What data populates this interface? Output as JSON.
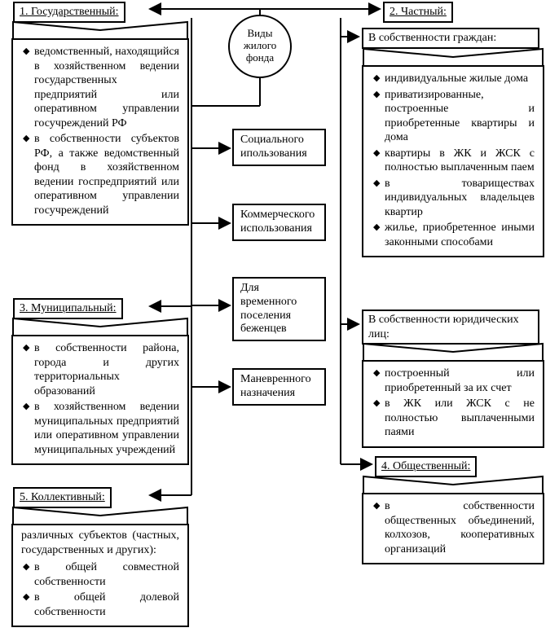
{
  "diagram": {
    "type": "flowchart",
    "background_color": "#ffffff",
    "border_color": "#000000",
    "stroke_width": 2,
    "font_family": "Times New Roman",
    "font_size": 14,
    "center": {
      "label": "Виды жилого\nфонда"
    },
    "categories": {
      "cat1": {
        "title": "1. Государственный:",
        "underline": true,
        "items": [
          "ведомственный, находящийся в хозяйственном ведении государственных предприятий или оперативном управлении госучреждений РФ",
          "в собственности субъектов РФ, а также ведомственный фонд в хозяйственном ведении госпредприятий или оперативном управлении госучреждений"
        ]
      },
      "cat2": {
        "title": "2. Частный:",
        "underline": true,
        "sub_a_title": "В собственности граждан:",
        "sub_a_items": [
          "индивидуальные жилые дома",
          "приватизированные, построенные и приобретенные квартиры и дома",
          "квартиры в ЖК и ЖСК с полностью выплаченным паем",
          "в товариществах индивидуальных владельцев квартир",
          "жилье, приобретенное иными законными способами"
        ],
        "sub_b_title": "В собственности юридических лиц:",
        "sub_b_items": [
          "построенный или приобретенный за их счет",
          "в ЖК или ЖСК с не полностью выплаченными паями"
        ]
      },
      "cat3": {
        "title": "3. Муниципальный:",
        "underline": true,
        "items": [
          "в собственности района, города и других территориальных образований",
          "в хозяйственном ведении муниципальных предприятий или оперативном управлении муниципальных учреждений"
        ]
      },
      "cat4": {
        "title": "4. Общественный:",
        "underline": true,
        "items": [
          "в собственности общественных объединений, колхозов, кооперативных организаций"
        ]
      },
      "cat5": {
        "title": "5. Коллективный:",
        "underline": true,
        "intro": "различных субъектов (частных, государственных и других):",
        "items": [
          "в общей совместной собственности",
          "в общей долевой собственности"
        ]
      }
    },
    "middle_boxes": {
      "m1": "Социального ипользования",
      "m2": "Коммерческого использования",
      "m3": "Для временного поселения беженцев",
      "m4": "Маневренного назначения"
    }
  }
}
